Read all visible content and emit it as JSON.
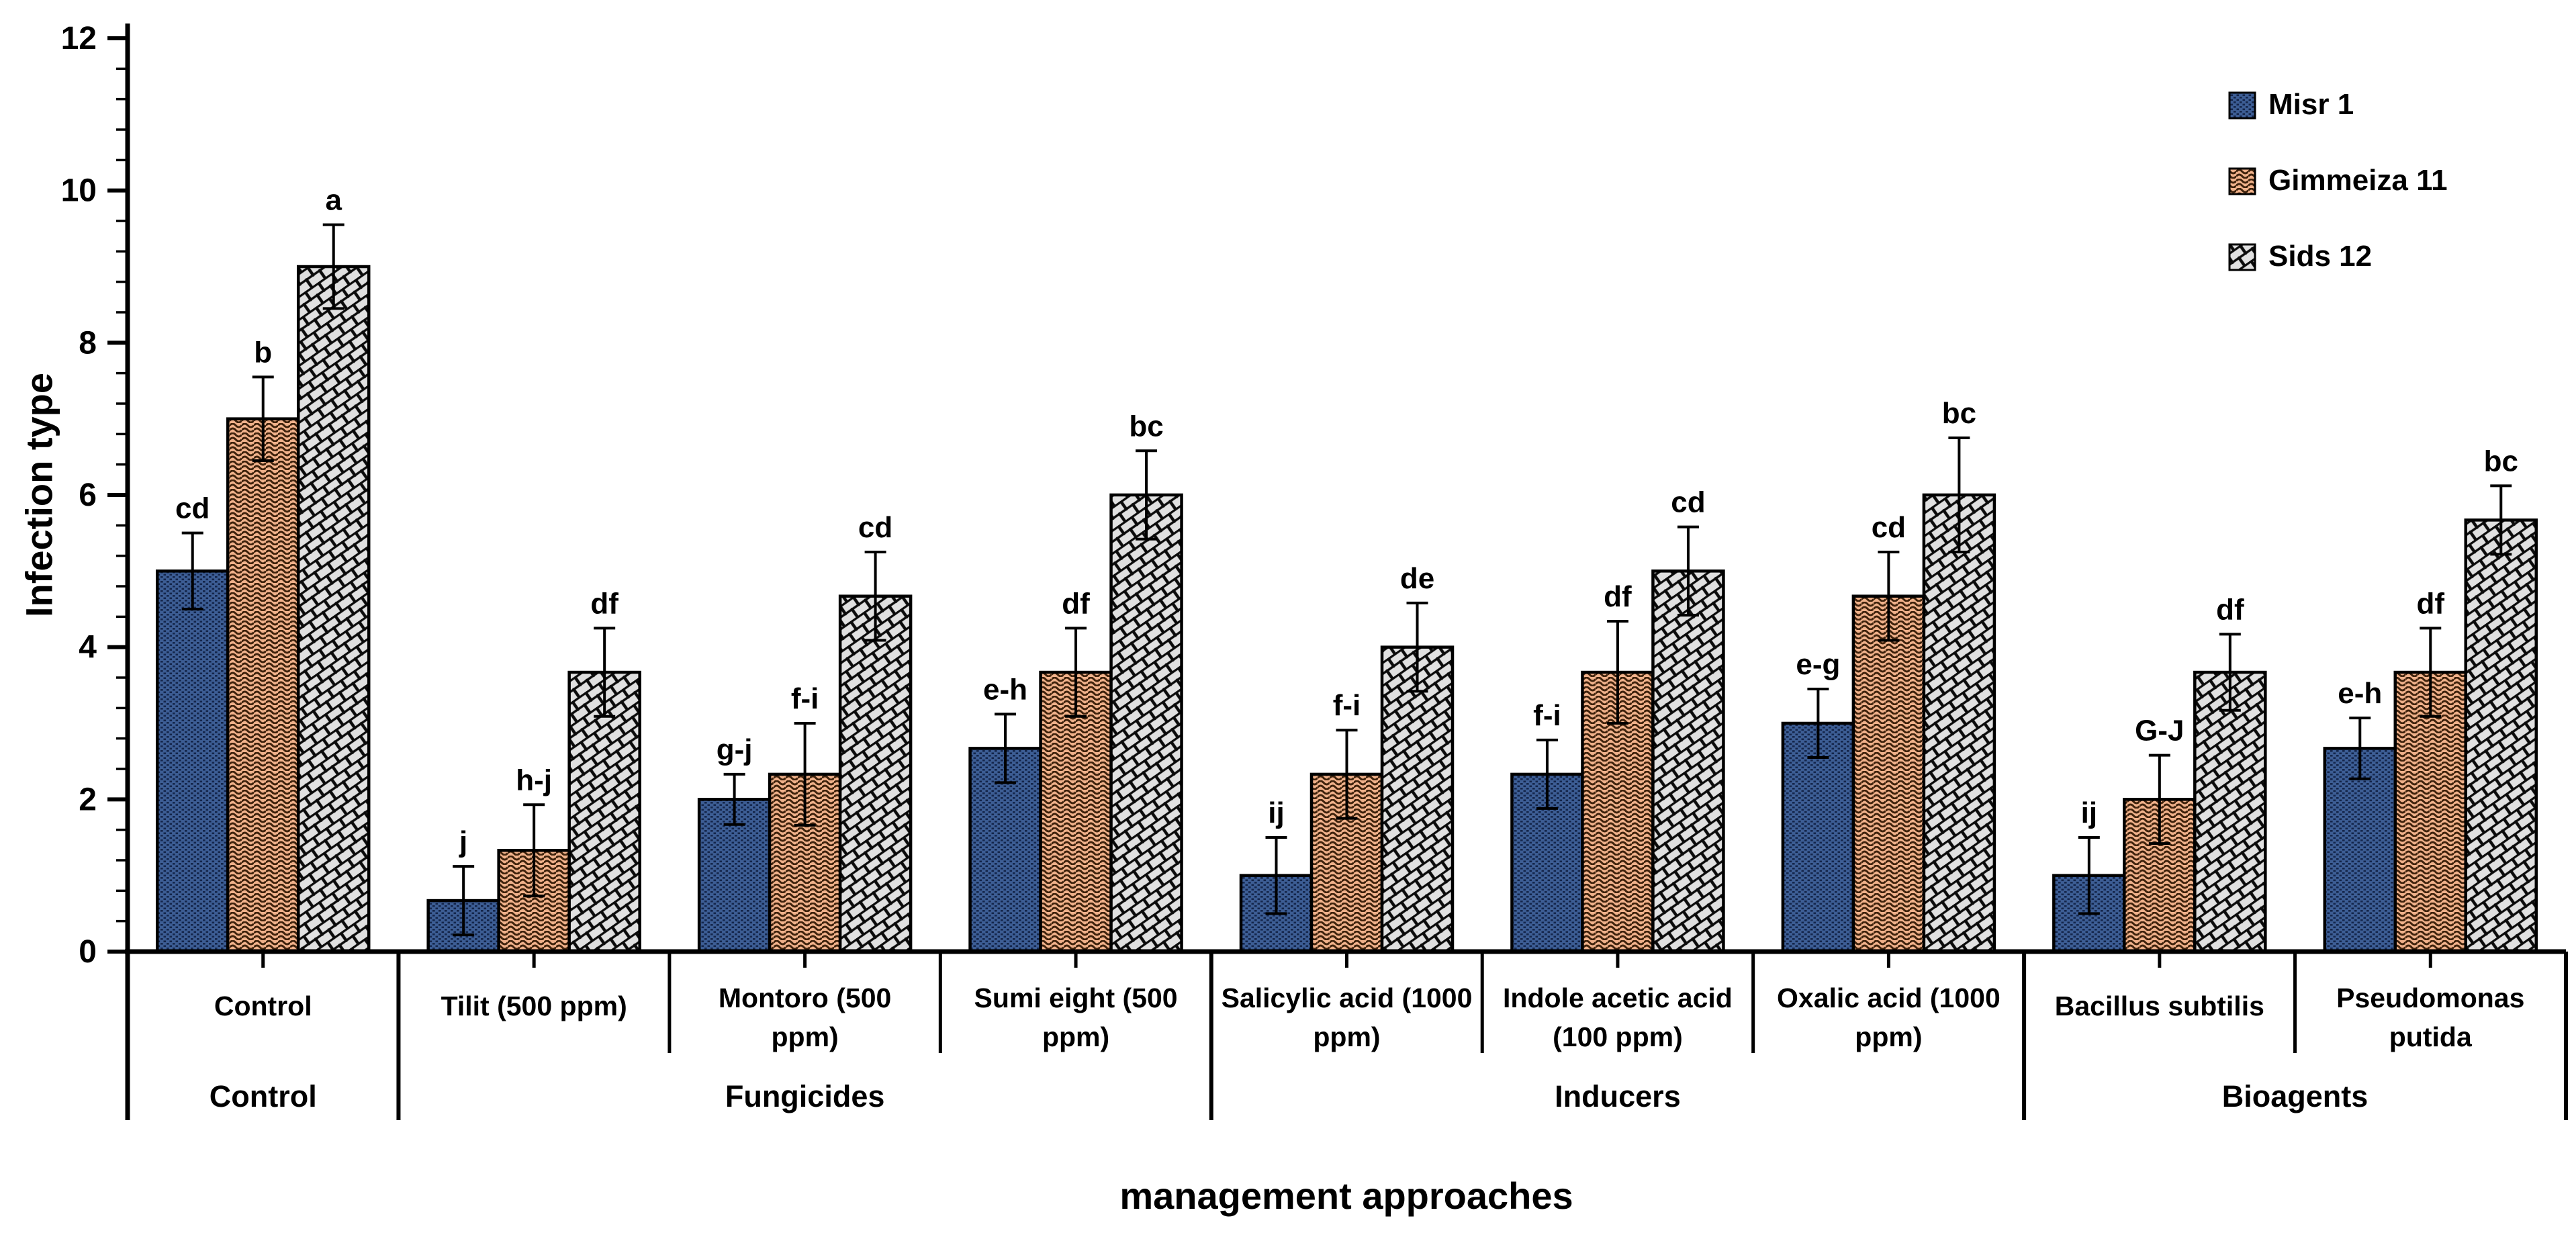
{
  "figure": {
    "y_axis_title": "Infection type",
    "x_axis_title": "management approaches",
    "background": "#ffffff"
  },
  "y_axis": {
    "min": 0,
    "max": 12,
    "major_step": 2,
    "minor_step": 0.4,
    "tick_labels": [
      "0",
      "2",
      "4",
      "6",
      "8",
      "10",
      "12"
    ]
  },
  "legend": {
    "position": "top-right",
    "items": [
      {
        "label": "Misr 1",
        "swatch": "misr-pattern"
      },
      {
        "label": "Gimmeiza 11",
        "swatch": "gimmeiza-pattern"
      },
      {
        "label": "Sids 12",
        "swatch": "sids-pattern"
      }
    ]
  },
  "colors": {
    "misr_base": "#3d5e95",
    "misr_dark": "#14254a",
    "gimmeiza_base": "#f0b18a",
    "gimmeiza_dark": "#3f230d",
    "sids_base": "#e0e0e0",
    "sids_dark": "#0b0b0b",
    "axis": "#000000",
    "text": "#000000"
  },
  "chart_data": {
    "type": "bar",
    "title": "",
    "xlabel": "management approaches",
    "ylabel": "Infection type",
    "ylim": [
      0,
      12
    ],
    "grid": false,
    "legend_position": "top-right",
    "categories": [
      "Control",
      "Tilit (500 ppm)",
      "Montoro (500 ppm)",
      "Sumi eight (500 ppm)",
      "Salicylic acid (1000 ppm)",
      "Indole acetic acid (100 ppm)",
      "Oxalic acid (1000 ppm)",
      "Bacillus subtilis",
      "Pseudomonas putida"
    ],
    "category_label_lines": [
      [
        "Control"
      ],
      [
        "Tilit (500 ppm)"
      ],
      [
        "Montoro (500",
        "ppm)"
      ],
      [
        "Sumi eight (500",
        "ppm)"
      ],
      [
        "Salicylic acid (1000",
        "ppm)"
      ],
      [
        "Indole acetic acid",
        "(100 ppm)"
      ],
      [
        "Oxalic acid (1000",
        "ppm)"
      ],
      [
        "Bacillus subtilis"
      ],
      [
        "Pseudomonas",
        "putida"
      ]
    ],
    "category_groups": [
      {
        "label": "Control",
        "span": 1
      },
      {
        "label": "Fungicides",
        "span": 3
      },
      {
        "label": "Inducers",
        "span": 3
      },
      {
        "label": "Bioagents",
        "span": 2
      }
    ],
    "series": [
      {
        "name": "Misr 1",
        "values": [
          5,
          0.67,
          2,
          2.67,
          1,
          2.33,
          3,
          1,
          2.67
        ],
        "errors": [
          0.5,
          0.45,
          0.33,
          0.45,
          0.5,
          0.45,
          0.45,
          0.5,
          0.4
        ],
        "letters": [
          "cd",
          "j",
          "g-j",
          "e-h",
          "ij",
          "f-i",
          "e-g",
          "ij",
          "e-h"
        ]
      },
      {
        "name": "Gimmeiza 11",
        "values": [
          7,
          1.33,
          2.33,
          3.67,
          2.33,
          3.67,
          4.67,
          2,
          3.67
        ],
        "errors": [
          0.55,
          0.6,
          0.67,
          0.58,
          0.58,
          0.67,
          0.58,
          0.58,
          0.58
        ],
        "letters": [
          "b",
          "h-j",
          "f-i",
          "df",
          "f-i",
          "df",
          "cd",
          "G-J",
          "df"
        ]
      },
      {
        "name": "Sids 12",
        "values": [
          9,
          3.67,
          4.67,
          6,
          4,
          5,
          6,
          3.67,
          5.67
        ],
        "errors": [
          0.55,
          0.58,
          0.58,
          0.58,
          0.58,
          0.58,
          0.75,
          0.5,
          0.45
        ],
        "letters": [
          "a",
          "df",
          "cd",
          "bc",
          "de",
          "cd",
          "bc",
          "df",
          "bc"
        ]
      }
    ]
  }
}
